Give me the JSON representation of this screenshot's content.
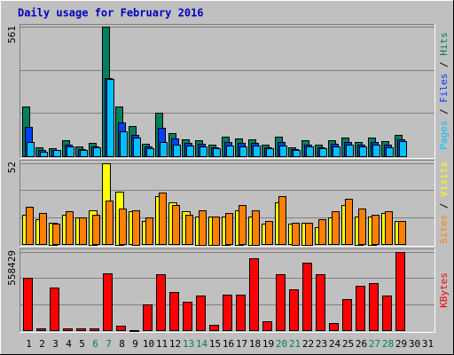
{
  "chart_data": [
    {
      "type": "bar",
      "title": "Daily usage for February 2016",
      "title_color": "#0000c0",
      "legend_separator": " / ",
      "ylim": [
        0,
        561
      ],
      "yticks": [
        561
      ],
      "series": [
        {
          "name": "Hits",
          "color": "#00805c",
          "values": [
            215,
            38,
            35,
            69,
            42,
            58,
            561,
            215,
            131,
            54,
            188,
            100,
            73,
            69,
            50,
            85,
            77,
            73,
            50,
            85,
            38,
            69,
            50,
            69,
            81,
            62,
            81,
            65,
            92,
            null,
            null
          ]
        },
        {
          "name": "Files",
          "color": "#0040ff",
          "values": [
            127,
            27,
            27,
            50,
            31,
            42,
            340,
            146,
            92,
            42,
            123,
            77,
            58,
            54,
            38,
            62,
            58,
            58,
            38,
            62,
            31,
            50,
            38,
            54,
            62,
            50,
            62,
            50,
            73,
            null,
            null
          ]
        },
        {
          "name": "Pages",
          "color": "#00c0ff",
          "values": [
            62,
            19,
            27,
            42,
            27,
            38,
            334,
            108,
            81,
            35,
            62,
            50,
            46,
            42,
            35,
            46,
            42,
            46,
            35,
            46,
            27,
            42,
            35,
            42,
            50,
            42,
            50,
            38,
            65,
            null,
            null
          ]
        }
      ]
    },
    {
      "type": "bar",
      "ylim": [
        0,
        52
      ],
      "yticks": [
        52
      ],
      "series": [
        {
          "name": "Visits",
          "color": "#ffff00",
          "values": [
            19,
            16,
            14,
            19,
            17,
            22,
            52,
            34,
            21,
            15,
            31,
            27,
            21,
            18,
            18,
            18,
            22,
            18,
            13,
            27,
            13,
            14,
            11,
            17,
            25,
            18,
            18,
            20,
            15,
            null,
            null
          ]
        },
        {
          "name": "Sites",
          "color": "#ff8000",
          "values": [
            24,
            20,
            13,
            21,
            17,
            19,
            28,
            23,
            22,
            17,
            33,
            25,
            19,
            22,
            18,
            20,
            25,
            22,
            15,
            31,
            14,
            14,
            16,
            21,
            29,
            23,
            19,
            21,
            15,
            null,
            null
          ]
        }
      ]
    },
    {
      "type": "bar",
      "ylim": [
        0,
        558429
      ],
      "yticks": [
        558429
      ],
      "categories": [
        "1",
        "2",
        "3",
        "4",
        "5",
        "6",
        "7",
        "8",
        "9",
        "10",
        "11",
        "12",
        "13",
        "14",
        "15",
        "16",
        "17",
        "18",
        "19",
        "20",
        "21",
        "22",
        "23",
        "24",
        "25",
        "26",
        "27",
        "28",
        "29",
        "30",
        "31"
      ],
      "category_colors": [
        "#000000",
        "#000000",
        "#000000",
        "#000000",
        "#000000",
        "#00805c",
        "#00805c",
        "#000000",
        "#000000",
        "#000000",
        "#000000",
        "#000000",
        "#00805c",
        "#00805c",
        "#000000",
        "#000000",
        "#000000",
        "#000000",
        "#000000",
        "#00805c",
        "#00805c",
        "#000000",
        "#000000",
        "#000000",
        "#000000",
        "#000000",
        "#00805c",
        "#00805c",
        "#000000",
        "#000000",
        "#000000"
      ],
      "series": [
        {
          "name": "KBytes",
          "color": "#ff0000",
          "values": [
            376000,
            12000,
            307000,
            12000,
            12000,
            12000,
            408000,
            31000,
            3000,
            182000,
            401000,
            276000,
            201000,
            245000,
            38000,
            257000,
            257000,
            514000,
            63000,
            401000,
            289000,
            483000,
            401000,
            50000,
            220000,
            320000,
            339000,
            245000,
            558429,
            null,
            null
          ]
        }
      ]
    }
  ]
}
